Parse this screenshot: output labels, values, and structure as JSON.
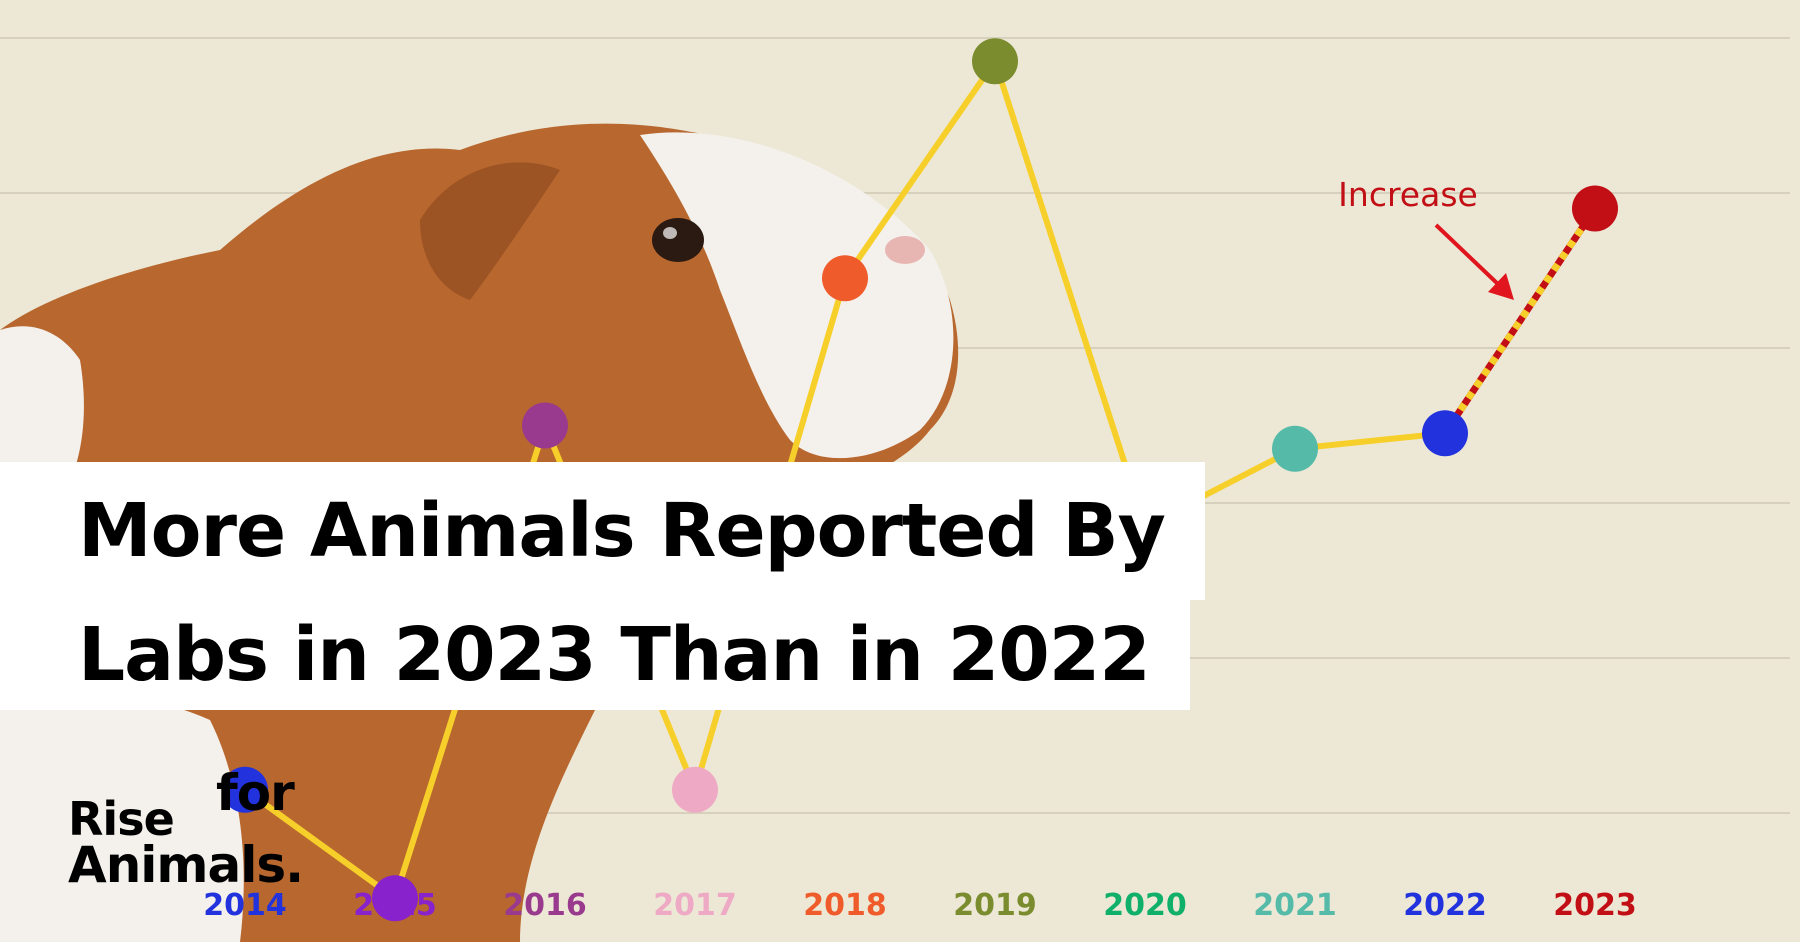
{
  "chart_data": {
    "type": "line",
    "title": "More Animals Reported By Labs in 2023 Than in 2022",
    "categories": [
      "2014",
      "2015",
      "2016",
      "2017",
      "2018",
      "2019",
      "2020",
      "2021",
      "2022",
      "2023"
    ],
    "values": [
      23,
      9,
      70,
      23,
      89,
      117,
      57,
      67,
      69,
      98
    ],
    "category_colors": [
      "#2233dd",
      "#8822cc",
      "#9a3a8e",
      "#eeaac4",
      "#ef5b2a",
      "#7a8c2e",
      "#10b06a",
      "#55bba8",
      "#2233dd",
      "#c20f16"
    ],
    "line_color": "#f7cf2a",
    "last_segment_style": "dashed",
    "last_segment_colors": [
      "#c20f16",
      "#f7cf2a"
    ],
    "ylim": [
      0,
      120
    ],
    "grid": true,
    "annotation": {
      "text": "Increase",
      "color": "#c20f16"
    }
  },
  "title": {
    "line1": "More Animals Reported By",
    "line2": "Labs in 2023 Than in 2022"
  },
  "logo": {
    "rise": "Rise",
    "for": "for",
    "animals": "Animals."
  },
  "colors": {
    "background": "#ede8d6",
    "gridline": "#d6d0bc",
    "guinea_pig_fur": "#b8672e",
    "guinea_pig_white": "#f4f1ec"
  }
}
